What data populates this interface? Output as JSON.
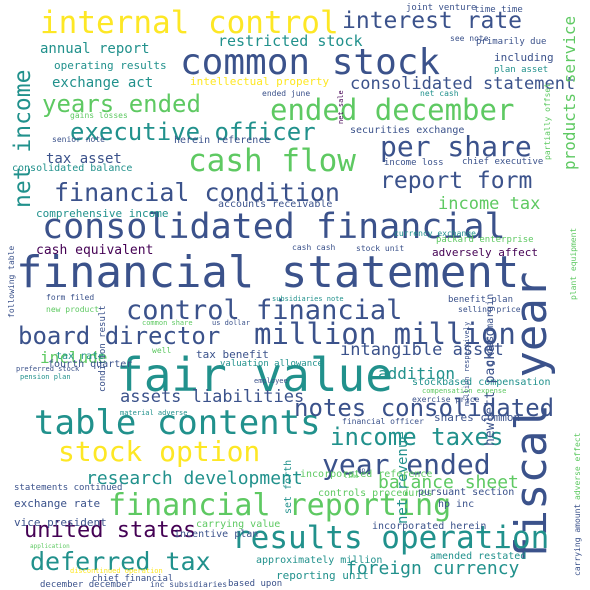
{
  "background": "#ffffff",
  "palette": [
    "#440154",
    "#3b528b",
    "#21918c",
    "#5ec962",
    "#fde725"
  ],
  "words": [
    {
      "id": "w1",
      "text": "financial statement"
    },
    {
      "id": "w2",
      "text": "fair value"
    },
    {
      "id": "w3",
      "text": "common stock"
    },
    {
      "id": "w4",
      "text": "consolidated financial"
    },
    {
      "id": "w5",
      "text": "table contents"
    },
    {
      "id": "w6",
      "text": "fiscal year"
    },
    {
      "id": "w7",
      "text": "internal control"
    },
    {
      "id": "w8",
      "text": "cash flow"
    },
    {
      "id": "w9",
      "text": "results operation"
    },
    {
      "id": "w10",
      "text": "financial reporting"
    },
    {
      "id": "w11",
      "text": "control financial"
    },
    {
      "id": "w12",
      "text": "ended december"
    },
    {
      "id": "w13",
      "text": "million million"
    },
    {
      "id": "w14",
      "text": "stock option"
    },
    {
      "id": "w15",
      "text": "year ended"
    },
    {
      "id": "w16",
      "text": "board director"
    },
    {
      "id": "w17",
      "text": "per share"
    },
    {
      "id": "w18",
      "text": "financial condition"
    },
    {
      "id": "w19",
      "text": "income taxes"
    },
    {
      "id": "w20",
      "text": "executive officer"
    },
    {
      "id": "w21",
      "text": "deferred tax"
    },
    {
      "id": "w22",
      "text": "years ended"
    },
    {
      "id": "w23",
      "text": "interest rate"
    },
    {
      "id": "w24",
      "text": "notes consolidated"
    },
    {
      "id": "w25",
      "text": "net income"
    },
    {
      "id": "w26",
      "text": "united states"
    },
    {
      "id": "w27",
      "text": "report form"
    },
    {
      "id": "w28",
      "text": "research development"
    },
    {
      "id": "w29",
      "text": "consolidated statement"
    },
    {
      "id": "w30",
      "text": "foreign currency"
    },
    {
      "id": "w31",
      "text": "income tax"
    },
    {
      "id": "w32",
      "text": "assets liabilities"
    },
    {
      "id": "w33",
      "text": "balance sheet"
    },
    {
      "id": "w34",
      "text": "intangible asset"
    },
    {
      "id": "w35",
      "text": "restricted stock"
    },
    {
      "id": "w36",
      "text": "annual report"
    },
    {
      "id": "w37",
      "text": "exchange act"
    },
    {
      "id": "w38",
      "text": "products service"
    },
    {
      "id": "w39",
      "text": "net revenue"
    },
    {
      "id": "w40",
      "text": "addition"
    },
    {
      "id": "w41",
      "text": "include"
    },
    {
      "id": "w42",
      "text": "tax asset"
    },
    {
      "id": "w43",
      "text": "cash equivalent"
    },
    {
      "id": "w44",
      "text": "exchange rate"
    },
    {
      "id": "w45",
      "text": "vice president"
    },
    {
      "id": "w46",
      "text": "incorporated reference"
    },
    {
      "id": "w47",
      "text": "adversely affect"
    },
    {
      "id": "w48",
      "text": "operating results"
    },
    {
      "id": "w49",
      "text": "comprehensive income"
    },
    {
      "id": "w50",
      "text": "intellectual property"
    },
    {
      "id": "w51",
      "text": "accounts receivable"
    },
    {
      "id": "w52",
      "text": "securities exchange"
    },
    {
      "id": "w53",
      "text": "tax benefit"
    },
    {
      "id": "w54",
      "text": "tax rate"
    },
    {
      "id": "w55",
      "text": "fourth quarter"
    },
    {
      "id": "w56",
      "text": "stockbased compensation"
    },
    {
      "id": "w57",
      "text": "gross margin"
    },
    {
      "id": "w58",
      "text": "hewlett packard"
    },
    {
      "id": "w59",
      "text": "shares common"
    },
    {
      "id": "w60",
      "text": "set forth"
    },
    {
      "id": "w61",
      "text": "approximately million"
    },
    {
      "id": "w62",
      "text": "reporting unit"
    },
    {
      "id": "w63",
      "text": "controls procedures"
    },
    {
      "id": "w64",
      "text": "pursuant section"
    },
    {
      "id": "w65",
      "text": "hp inc"
    },
    {
      "id": "w66",
      "text": "incorporated herein"
    },
    {
      "id": "w67",
      "text": "amended restated"
    },
    {
      "id": "w68",
      "text": "carrying value"
    },
    {
      "id": "w69",
      "text": "incentive plan"
    },
    {
      "id": "w70",
      "text": "chief financial"
    },
    {
      "id": "w71",
      "text": "december december"
    },
    {
      "id": "w72",
      "text": "inc subsidiaries"
    },
    {
      "id": "w73",
      "text": "based upon"
    },
    {
      "id": "w74",
      "text": "statements continued"
    },
    {
      "id": "w75",
      "text": "consolidated balance"
    },
    {
      "id": "w76",
      "text": "senior note"
    },
    {
      "id": "w77",
      "text": "herein reference"
    },
    {
      "id": "w78",
      "text": "gains losses"
    },
    {
      "id": "w79",
      "text": "income loss"
    },
    {
      "id": "w80",
      "text": "chief executive"
    },
    {
      "id": "w81",
      "text": "currency exchange"
    },
    {
      "id": "w82",
      "text": "packard enterprise"
    },
    {
      "id": "w83",
      "text": "primarily due"
    },
    {
      "id": "w84",
      "text": "including"
    },
    {
      "id": "w85",
      "text": "plan asset"
    },
    {
      "id": "w86",
      "text": "joint venture"
    },
    {
      "id": "w87",
      "text": "time time"
    },
    {
      "id": "w88",
      "text": "see note"
    },
    {
      "id": "w89",
      "text": "ended june"
    },
    {
      "id": "w90",
      "text": "net cash"
    },
    {
      "id": "w91",
      "text": "cash cash"
    },
    {
      "id": "w92",
      "text": "stock unit"
    },
    {
      "id": "w93",
      "text": "form filed"
    },
    {
      "id": "w94",
      "text": "new product"
    },
    {
      "id": "w95",
      "text": "subsidiaries note"
    },
    {
      "id": "w96",
      "text": "benefit plan"
    },
    {
      "id": "w97",
      "text": "selling price"
    },
    {
      "id": "w98",
      "text": "common share"
    },
    {
      "id": "w99",
      "text": "us dollar"
    },
    {
      "id": "w100",
      "text": "well"
    },
    {
      "id": "w101",
      "text": "valuation allowance"
    },
    {
      "id": "w102",
      "text": "employee"
    },
    {
      "id": "w103",
      "text": "compensation expense"
    },
    {
      "id": "w104",
      "text": "exercise price"
    },
    {
      "id": "w105",
      "text": "material adverse"
    },
    {
      "id": "w106",
      "text": "financial officer"
    },
    {
      "id": "w107",
      "text": "preferred stock"
    },
    {
      "id": "w108",
      "text": "pension plan"
    },
    {
      "id": "w109",
      "text": "application"
    },
    {
      "id": "w110",
      "text": "discontinued operation"
    },
    {
      "id": "w111",
      "text": "time"
    },
    {
      "id": "w112",
      "text": "hp"
    },
    {
      "id": "w113",
      "text": "following table"
    },
    {
      "id": "w114",
      "text": "condition result"
    },
    {
      "id": "w115",
      "text": "million respectively"
    },
    {
      "id": "w116",
      "text": "partially offset"
    },
    {
      "id": "w117",
      "text": "net sale"
    },
    {
      "id": "w118",
      "text": "plant equipment"
    },
    {
      "id": "w119",
      "text": "adverse effect"
    },
    {
      "id": "w120",
      "text": "carrying amount"
    }
  ]
}
